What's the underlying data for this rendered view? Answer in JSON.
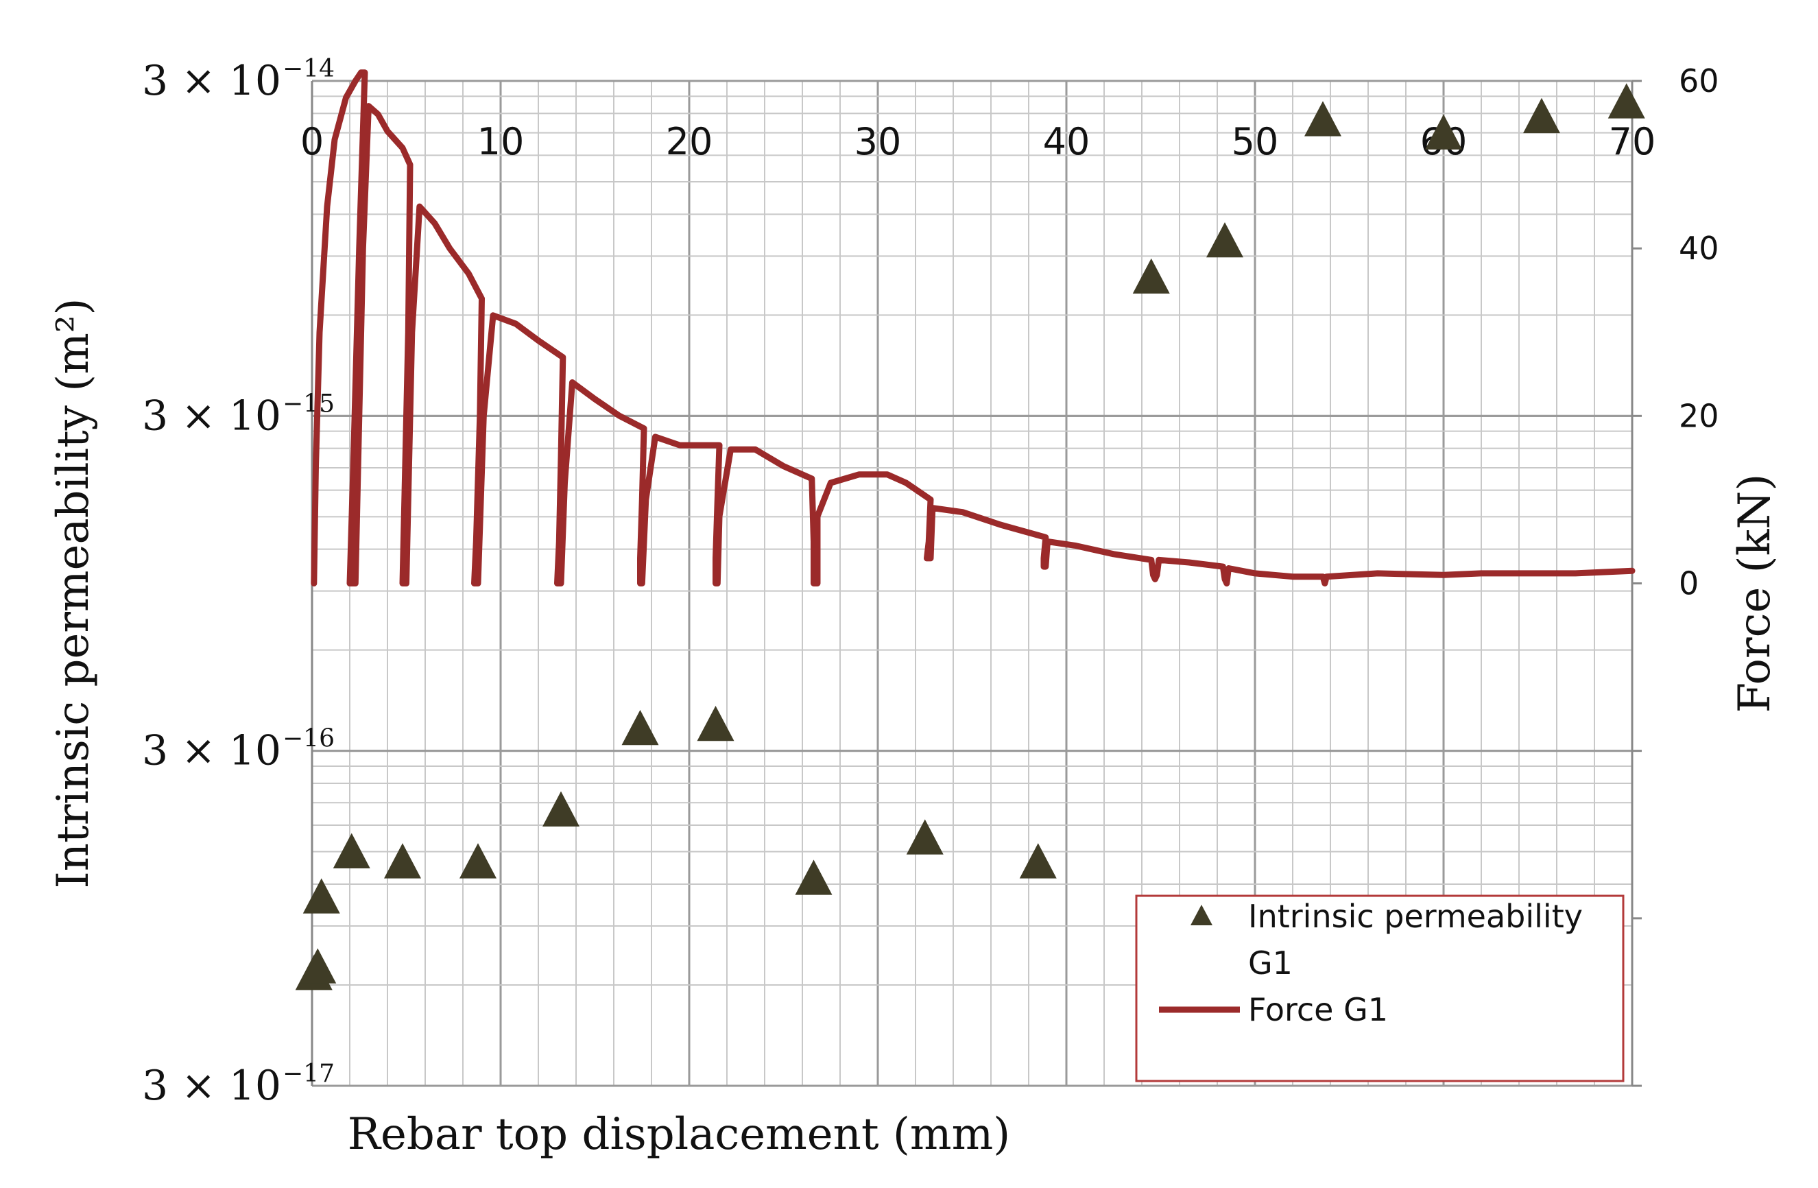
{
  "chart_data": {
    "type": "scatter+line",
    "title": "",
    "xlabel": "Rebar top displacement (mm)",
    "ylabel_left": "Intrinsic permeability (m²)",
    "ylabel_right": "Force (kN)",
    "xlim": [
      0,
      70
    ],
    "x_ticks": [
      0,
      10,
      20,
      30,
      40,
      50,
      60,
      70
    ],
    "x_tick_labels": [
      "0",
      "10",
      "20",
      "30",
      "40",
      "50",
      "60",
      "70"
    ],
    "ylim_left": [
      3e-17,
      3e-14
    ],
    "y_scale_left": "log",
    "y_ticks_left": [
      {
        "value": 3e-14,
        "base": "3 × 10",
        "exp": "−14"
      },
      {
        "value": 3e-15,
        "base": "3 × 10",
        "exp": "−15"
      },
      {
        "value": 3e-16,
        "base": "3 × 10",
        "exp": "−16"
      },
      {
        "value": 3e-17,
        "base": "3 × 10",
        "exp": "−17"
      }
    ],
    "ylim_right": [
      -60,
      60
    ],
    "y_ticks_right": [
      0,
      20,
      40,
      60
    ],
    "y_tick_labels_right": [
      "0",
      "20",
      "40",
      "60"
    ],
    "grid": true,
    "legend_position": "bottom-right",
    "legend": [
      "Intrinsic permeability G1",
      "Force G1"
    ],
    "series": [
      {
        "name": "Intrinsic permeability G1",
        "kind": "scatter",
        "marker": "triangle",
        "color": "#3f3c26",
        "axis": "left",
        "points": [
          [
            0.1,
            6.5e-17
          ],
          [
            0.3,
            6.8e-17
          ],
          [
            0.5,
            1.1e-16
          ],
          [
            2.1,
            1.5e-16
          ],
          [
            4.8,
            1.4e-16
          ],
          [
            8.8,
            1.4e-16
          ],
          [
            13.2,
            2e-16
          ],
          [
            17.4,
            3.5e-16
          ],
          [
            21.4,
            3.6e-16
          ],
          [
            26.6,
            1.25e-16
          ],
          [
            32.5,
            1.65e-16
          ],
          [
            38.5,
            1.4e-16
          ],
          [
            44.5,
            7.8e-15
          ],
          [
            48.4,
            1e-14
          ],
          [
            53.6,
            2.3e-14
          ],
          [
            60.0,
            2.1e-14
          ],
          [
            65.2,
            2.35e-14
          ],
          [
            69.7,
            2.6e-14
          ]
        ]
      },
      {
        "name": "Force G1",
        "kind": "line",
        "color": "#9b2a2a",
        "axis": "right",
        "points": [
          [
            0.1,
            0
          ],
          [
            0.2,
            14
          ],
          [
            0.4,
            30
          ],
          [
            0.8,
            45
          ],
          [
            1.2,
            53
          ],
          [
            1.8,
            58
          ],
          [
            2.3,
            60
          ],
          [
            2.6,
            61
          ],
          [
            2.8,
            61
          ],
          [
            2.5,
            40
          ],
          [
            2.2,
            15
          ],
          [
            2.0,
            0
          ],
          [
            2.3,
            0
          ],
          [
            2.7,
            40
          ],
          [
            3.0,
            57
          ],
          [
            3.5,
            56
          ],
          [
            4.0,
            54
          ],
          [
            4.8,
            52
          ],
          [
            5.2,
            50
          ],
          [
            5.1,
            30
          ],
          [
            4.9,
            10
          ],
          [
            4.8,
            0
          ],
          [
            5.0,
            0
          ],
          [
            5.3,
            30
          ],
          [
            5.7,
            45
          ],
          [
            6.5,
            43
          ],
          [
            7.3,
            40
          ],
          [
            8.3,
            37
          ],
          [
            9.0,
            34
          ],
          [
            8.9,
            20
          ],
          [
            8.7,
            5
          ],
          [
            8.6,
            0
          ],
          [
            8.8,
            0
          ],
          [
            9.1,
            20
          ],
          [
            9.6,
            32
          ],
          [
            10.8,
            31
          ],
          [
            12.0,
            29
          ],
          [
            13.3,
            27
          ],
          [
            13.2,
            15
          ],
          [
            13.1,
            5
          ],
          [
            13.0,
            0
          ],
          [
            13.2,
            0
          ],
          [
            13.4,
            12
          ],
          [
            13.8,
            24
          ],
          [
            15.0,
            22
          ],
          [
            16.3,
            20
          ],
          [
            17.6,
            18.5
          ],
          [
            17.5,
            10
          ],
          [
            17.4,
            3
          ],
          [
            17.4,
            0
          ],
          [
            17.5,
            0
          ],
          [
            17.7,
            10
          ],
          [
            18.2,
            17.5
          ],
          [
            19.5,
            16.5
          ],
          [
            20.5,
            16.5
          ],
          [
            21.6,
            16.5
          ],
          [
            21.5,
            10
          ],
          [
            21.4,
            3
          ],
          [
            21.4,
            0
          ],
          [
            21.5,
            0
          ],
          [
            21.6,
            8
          ],
          [
            22.2,
            16
          ],
          [
            23.5,
            16
          ],
          [
            25.0,
            14
          ],
          [
            26.5,
            12.5
          ],
          [
            26.6,
            5
          ],
          [
            26.6,
            0
          ],
          [
            26.8,
            0
          ],
          [
            26.8,
            8
          ],
          [
            27.5,
            12
          ],
          [
            29.0,
            13
          ],
          [
            30.5,
            13
          ],
          [
            31.5,
            12
          ],
          [
            32.8,
            10
          ],
          [
            32.7,
            5
          ],
          [
            32.6,
            3
          ],
          [
            32.8,
            3
          ],
          [
            32.9,
            9
          ],
          [
            34.5,
            8.5
          ],
          [
            36.5,
            7
          ],
          [
            38.9,
            5.5
          ],
          [
            38.8,
            3
          ],
          [
            38.8,
            2
          ],
          [
            38.9,
            2
          ],
          [
            39.0,
            5
          ],
          [
            40.5,
            4.5
          ],
          [
            42.5,
            3.5
          ],
          [
            44.5,
            2.8
          ],
          [
            44.6,
            1
          ],
          [
            44.7,
            0.5
          ],
          [
            44.8,
            1
          ],
          [
            44.9,
            2.8
          ],
          [
            46.5,
            2.5
          ],
          [
            48.3,
            2
          ],
          [
            48.4,
            0.5
          ],
          [
            48.5,
            0
          ],
          [
            48.6,
            1.8
          ],
          [
            50.0,
            1.2
          ],
          [
            52.0,
            0.8
          ],
          [
            53.6,
            0.8
          ],
          [
            53.7,
            0
          ],
          [
            53.8,
            0.8
          ],
          [
            56.5,
            1.2
          ],
          [
            60.0,
            1.0
          ],
          [
            62.0,
            1.2
          ],
          [
            65.0,
            1.2
          ],
          [
            67.0,
            1.2
          ],
          [
            70.0,
            1.5
          ]
        ]
      }
    ]
  },
  "colors": {
    "grid_major": "#9a9a9a",
    "grid_minor": "#c8c8c8",
    "force_line": "#9b2a2a",
    "marker": "#3f3c26",
    "legend_border": "#b33a3a"
  }
}
